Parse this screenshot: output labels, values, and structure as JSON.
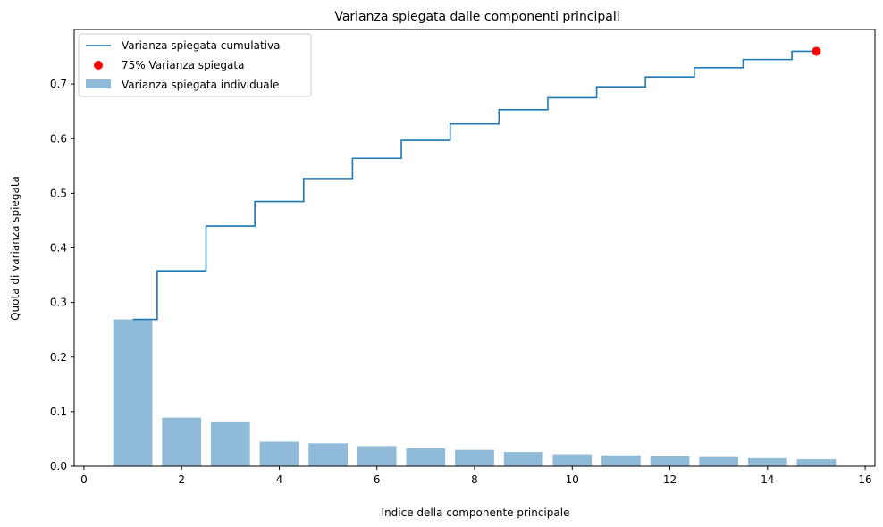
{
  "chart_data": {
    "type": "bar",
    "title": "Varianza spiegata dalle componenti principali",
    "xlabel": "Indice della componente principale",
    "ylabel": "Quota di varianza spiegata",
    "xlim": [
      -0.2,
      16.2
    ],
    "ylim": [
      0,
      0.8
    ],
    "x_ticks": [
      0,
      2,
      4,
      6,
      8,
      10,
      12,
      14,
      16
    ],
    "y_ticks": [
      0.0,
      0.1,
      0.2,
      0.3,
      0.4,
      0.5,
      0.6,
      0.7
    ],
    "x_tick_labels": [
      "0",
      "2",
      "4",
      "6",
      "8",
      "10",
      "12",
      "14",
      "16"
    ],
    "y_tick_labels": [
      "0.0",
      "0.1",
      "0.2",
      "0.3",
      "0.4",
      "0.5",
      "0.6",
      "0.7"
    ],
    "grid": false,
    "legend_position": "top-left",
    "x": [
      1,
      2,
      3,
      4,
      5,
      6,
      7,
      8,
      9,
      10,
      11,
      12,
      13,
      14,
      15
    ],
    "series": [
      {
        "name": "Varianza spiegata individuale",
        "kind": "bar",
        "color": "#8fbbd9",
        "values": [
          0.269,
          0.089,
          0.082,
          0.045,
          0.042,
          0.037,
          0.033,
          0.03,
          0.026,
          0.022,
          0.02,
          0.018,
          0.017,
          0.015,
          0.013
        ]
      },
      {
        "name": "Varianza spiegata cumulativa",
        "kind": "step-mid",
        "color": "#1f77b4",
        "values": [
          0.269,
          0.358,
          0.44,
          0.485,
          0.527,
          0.564,
          0.597,
          0.627,
          0.653,
          0.675,
          0.695,
          0.713,
          0.73,
          0.745,
          0.76
        ]
      },
      {
        "name": "75% Varianza spiegata",
        "kind": "point",
        "color": "#ff0000",
        "x": [
          15
        ],
        "values": [
          0.76
        ]
      }
    ]
  }
}
